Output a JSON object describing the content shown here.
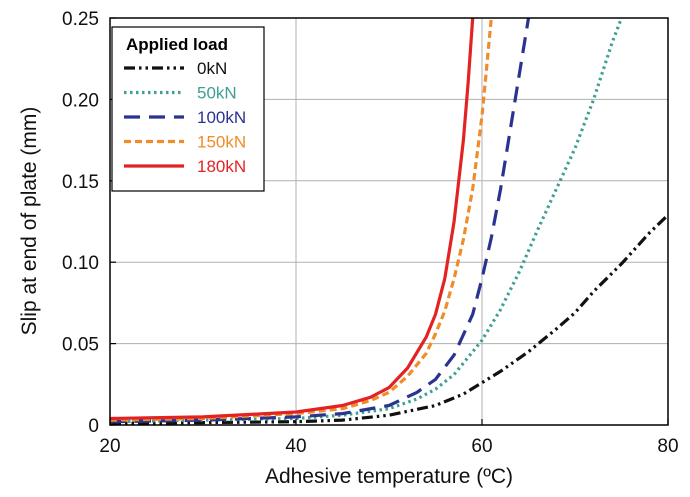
{
  "chart_data": {
    "type": "line",
    "xlabel": "Adhesive temperature (ºC)",
    "ylabel": "Slip at end of plate (mm)",
    "xlim": [
      20,
      80
    ],
    "ylim": [
      0,
      0.25
    ],
    "xticks": [
      "20",
      "40",
      "60",
      "80"
    ],
    "yticks": [
      "0",
      "0.05",
      "0.10",
      "0.15",
      "0.20",
      "0.25"
    ],
    "grid": true,
    "legend": {
      "title": "Applied load",
      "placement": "top-left"
    },
    "series": [
      {
        "name": "0kN",
        "color": "#111111",
        "dash": "dash-dot-dot",
        "x": [
          20,
          30,
          40,
          45,
          50,
          55,
          58,
          60,
          62,
          65,
          68,
          70,
          72,
          75,
          78,
          80
        ],
        "y": [
          0.001,
          0.0015,
          0.002,
          0.003,
          0.006,
          0.012,
          0.019,
          0.026,
          0.033,
          0.045,
          0.059,
          0.069,
          0.082,
          0.099,
          0.118,
          0.129
        ]
      },
      {
        "name": "50kN",
        "color": "#3f9f95",
        "dash": "dotted",
        "x": [
          20,
          30,
          40,
          45,
          50,
          53,
          55,
          57,
          60,
          62,
          64,
          66,
          68,
          70,
          72,
          74,
          75
        ],
        "y": [
          0.002,
          0.003,
          0.004,
          0.006,
          0.01,
          0.016,
          0.022,
          0.031,
          0.052,
          0.071,
          0.094,
          0.12,
          0.145,
          0.17,
          0.2,
          0.235,
          0.25
        ]
      },
      {
        "name": "100kN",
        "color": "#2b3390",
        "dash": "long-dash",
        "x": [
          20,
          30,
          40,
          45,
          50,
          53,
          55,
          57,
          59,
          60,
          61,
          62,
          63,
          64,
          65
        ],
        "y": [
          0.002,
          0.003,
          0.005,
          0.007,
          0.012,
          0.02,
          0.028,
          0.043,
          0.068,
          0.09,
          0.115,
          0.145,
          0.18,
          0.215,
          0.25
        ]
      },
      {
        "name": "150kN",
        "color": "#f08c2a",
        "dash": "short-dash",
        "x": [
          20,
          30,
          40,
          45,
          48,
          50,
          52,
          54,
          55,
          56,
          57,
          58,
          59,
          60,
          60.5,
          61
        ],
        "y": [
          0.003,
          0.004,
          0.007,
          0.01,
          0.015,
          0.02,
          0.03,
          0.044,
          0.056,
          0.07,
          0.09,
          0.114,
          0.145,
          0.19,
          0.22,
          0.25
        ]
      },
      {
        "name": "180kN",
        "color": "#e32323",
        "dash": "solid",
        "x": [
          20,
          30,
          40,
          45,
          48,
          50,
          52,
          54,
          55,
          56,
          57,
          58,
          58.5,
          59
        ],
        "y": [
          0.004,
          0.005,
          0.008,
          0.012,
          0.017,
          0.023,
          0.035,
          0.054,
          0.068,
          0.09,
          0.125,
          0.175,
          0.21,
          0.25
        ]
      }
    ]
  }
}
